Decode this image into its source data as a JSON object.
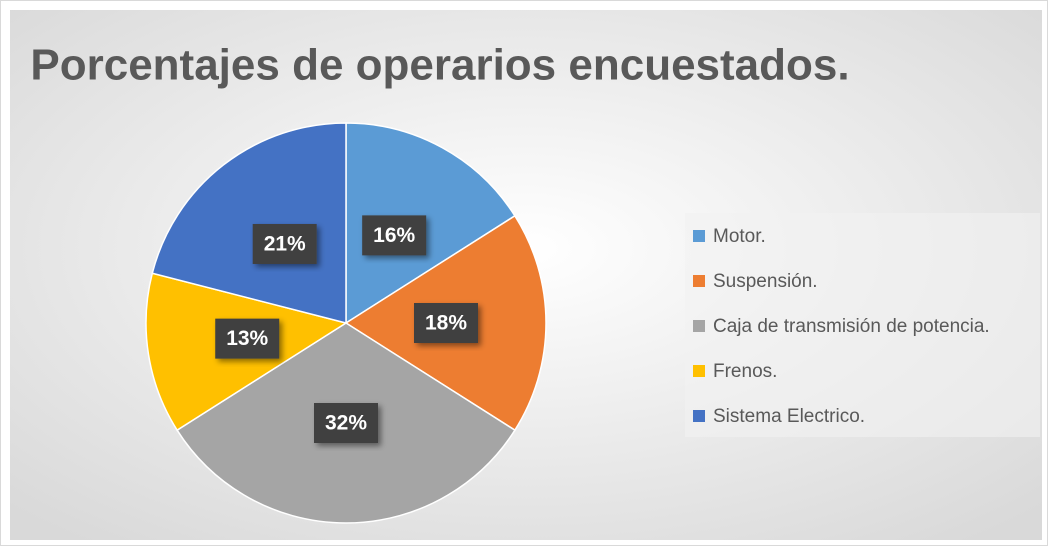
{
  "chart_data": {
    "type": "pie",
    "title": "Porcentajes de operarios encuestados.",
    "categories": [
      "Motor.",
      "Suspensión.",
      "Caja de transmisión de potencia.",
      "Frenos.",
      "Sistema Electrico."
    ],
    "values": [
      16,
      18,
      32,
      13,
      21
    ],
    "value_labels": [
      "16%",
      "18%",
      "32%",
      "13%",
      "21%"
    ],
    "colors": [
      "#5b9bd5",
      "#ed7d31",
      "#a5a5a5",
      "#ffc000",
      "#4472c4"
    ],
    "legend": "right"
  }
}
